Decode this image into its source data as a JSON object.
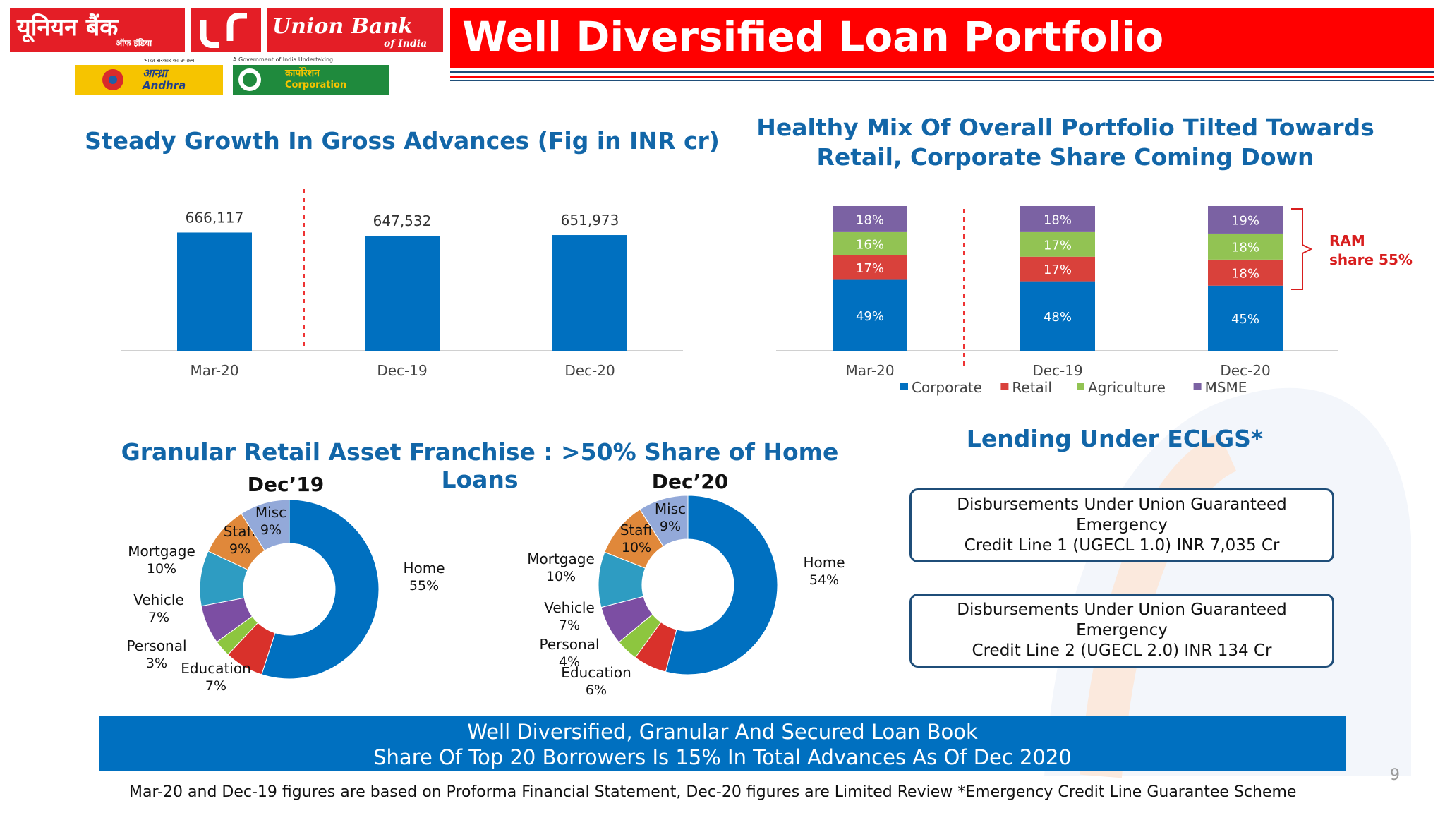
{
  "header": {
    "title": "Well Diversified Loan Portfolio",
    "logo_hindi": "यूनियन बैंक",
    "logo_hindi_sub": "ऑफ इंडिया",
    "logo_english": "Union Bank",
    "logo_english_sub": "of India",
    "logo_tagline_hindi": "भारत सरकार का उपक्रम",
    "logo_tagline": "A Government of India Undertaking",
    "andhra_hindi": "आन्ध्रा",
    "andhra": "Andhra",
    "corporation_hindi": "कार्पोरेशन",
    "corporation": "Corporation",
    "colors": {
      "red": "#ff0000",
      "blue": "#0070c0",
      "navy": "#1f4e79"
    }
  },
  "gross_advances": {
    "title": "Steady Growth In Gross Advances (Fig in INR cr)"
  },
  "portfolio_mix": {
    "title_line1": "Healthy Mix Of Overall Portfolio Tilted Towards",
    "title_line2": "Retail, Corporate Share Coming Down",
    "ram_line1": "RAM",
    "ram_line2": "share 55%"
  },
  "retail": {
    "title": "Granular Retail Asset Franchise : >50% Share of Home Loans"
  },
  "eclgs": {
    "title": "Lending Under ECLGS*",
    "box1_line1": "Disbursements Under Union Guaranteed Emergency",
    "box1_line2": "Credit Line 1 (UGECL 1.0) INR 7,035 Cr",
    "box2_line1": "Disbursements Under Union Guaranteed Emergency",
    "box2_line2": "Credit Line 2 (UGECL 2.0) INR 134 Cr"
  },
  "banner": {
    "line1": "Well Diversified, Granular And Secured Loan Book",
    "line2": "Share Of Top 20 Borrowers Is 15% In Total Advances As Of Dec 2020"
  },
  "footnote": "Mar-20 and Dec-19 figures are based on Proforma Financial Statement, Dec-20 figures are Limited Review  *Emergency Credit Line Guarantee Scheme",
  "page_number": "9",
  "chart_data": [
    {
      "type": "bar",
      "title": "Steady Growth In Gross Advances (Fig in INR cr)",
      "categories": [
        "Mar-20",
        "Dec-19",
        "Dec-20"
      ],
      "values": [
        666117,
        647532,
        651973
      ],
      "value_labels": [
        "666,117",
        "647,532",
        "651,973"
      ],
      "color": "#0070c0",
      "ylim": [
        0,
        1000000
      ]
    },
    {
      "type": "bar",
      "stacked": true,
      "percent": true,
      "title": "Healthy Mix Of Overall Portfolio Tilted Towards Retail, Corporate Share Coming Down",
      "categories": [
        "Mar-20",
        "Dec-19",
        "Dec-20"
      ],
      "series": [
        {
          "name": "Corporate",
          "color": "#0070c0",
          "values": [
            49,
            48,
            45
          ],
          "labels": [
            "49%",
            "48%",
            "45%"
          ]
        },
        {
          "name": "Retail",
          "color": "#d9413b",
          "values": [
            17,
            17,
            18
          ],
          "labels": [
            "17%",
            "17%",
            "18%"
          ]
        },
        {
          "name": "Agriculture",
          "color": "#92c353",
          "values": [
            16,
            17,
            18
          ],
          "labels": [
            "16%",
            "17%",
            "18%"
          ]
        },
        {
          "name": "MSME",
          "color": "#7b62a3",
          "values": [
            18,
            18,
            19
          ],
          "labels": [
            "18%",
            "18%",
            "19%"
          ]
        }
      ],
      "legend": "bottom",
      "ylim": [
        0,
        100
      ]
    },
    {
      "type": "pie",
      "donut": true,
      "title": "Dec’19",
      "slices": [
        {
          "name": "Home",
          "value": 55,
          "label": "55%",
          "color": "#0070c0"
        },
        {
          "name": "Education",
          "value": 7,
          "label": "7%",
          "color": "#d9312b"
        },
        {
          "name": "Personal",
          "value": 3,
          "label": "3%",
          "color": "#8dc63f"
        },
        {
          "name": "Vehicle",
          "value": 7,
          "label": "7%",
          "color": "#7c4ea3"
        },
        {
          "name": "Mortgage",
          "value": 10,
          "label": "10%",
          "color": "#2e9cc2"
        },
        {
          "name": "Staff",
          "value": 9,
          "label": "9%",
          "color": "#e0883a"
        },
        {
          "name": "Misc",
          "value": 9,
          "label": "9%",
          "color": "#93a9d9"
        }
      ]
    },
    {
      "type": "pie",
      "donut": true,
      "title": "Dec’20",
      "slices": [
        {
          "name": "Home",
          "value": 54,
          "label": "54%",
          "color": "#0070c0"
        },
        {
          "name": "Education",
          "value": 6,
          "label": "6%",
          "color": "#d9312b"
        },
        {
          "name": "Personal",
          "value": 4,
          "label": "4%",
          "color": "#8dc63f"
        },
        {
          "name": "Vehicle",
          "value": 7,
          "label": "7%",
          "color": "#7c4ea3"
        },
        {
          "name": "Mortgage",
          "value": 10,
          "label": "10%",
          "color": "#2e9cc2"
        },
        {
          "name": "Staff",
          "value": 10,
          "label": "10%",
          "color": "#e0883a"
        },
        {
          "name": "Misc",
          "value": 9,
          "label": "9%",
          "color": "#93a9d9"
        }
      ]
    }
  ]
}
